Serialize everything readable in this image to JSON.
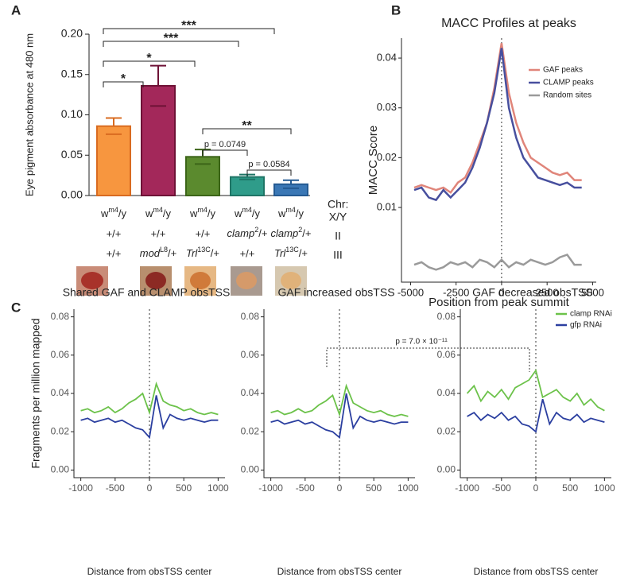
{
  "chart_data": [
    {
      "type": "bar",
      "panel": "A",
      "ylabel": "Eye pigment absorbance at 480 nm",
      "values": [
        0.086,
        0.136,
        0.048,
        0.023,
        0.014
      ],
      "errors": [
        0.01,
        0.025,
        0.009,
        0.003,
        0.005
      ],
      "colors": [
        "#f7963f",
        "#a3285a",
        "#5b8a2e",
        "#2f9c8a",
        "#3a77b5"
      ],
      "ylim": [
        0,
        0.2
      ],
      "yticks": [
        {
          "value": 0,
          "label": "0.00"
        },
        0.05,
        {
          "value": 0.1,
          "label": "0.10"
        },
        0.15,
        {
          "value": 0.2,
          "label": "0.20"
        }
      ],
      "chr_label": "Chr:",
      "chr_rows": [
        "X/Y",
        "II",
        "III"
      ],
      "genotypes": [
        [
          {
            "t": "w",
            "s": "m4",
            "a": "/y"
          },
          "+/+",
          "+/+"
        ],
        [
          {
            "t": "w",
            "s": "m4",
            "a": "/y"
          },
          "+/+",
          {
            "t": "mod",
            "s": "L8",
            "a": "/+"
          }
        ],
        [
          {
            "t": "w",
            "s": "m4",
            "a": "/y"
          },
          "+/+",
          {
            "t": "Trl",
            "s": "13C",
            "a": "/+"
          }
        ],
        [
          {
            "t": "w",
            "s": "m4",
            "a": "/y"
          },
          {
            "t": "clamp",
            "s": "2",
            "a": "/+"
          },
          "+/+"
        ],
        [
          {
            "t": "w",
            "s": "m4",
            "a": "/y"
          },
          {
            "t": "clamp",
            "s": "2",
            "a": "/+"
          },
          {
            "t": "Trl",
            "s": "13C",
            "a": "/+"
          }
        ]
      ],
      "annotations": [
        "***",
        "***",
        "*",
        "*",
        "**",
        "p = 0.0749",
        "p = 0.0584"
      ]
    },
    {
      "type": "line",
      "panel": "B",
      "title": "MACC Profiles at peaks",
      "xlabel": "Position from peak summit",
      "ylabel": "MACC Score",
      "x": [
        -4800,
        -4400,
        -4000,
        -3600,
        -3200,
        -2800,
        -2400,
        -2000,
        -1600,
        -1200,
        -800,
        -400,
        0,
        400,
        800,
        1200,
        1600,
        2000,
        2400,
        2800,
        3200,
        3600,
        4000,
        4400
      ],
      "series": [
        {
          "name": "GAF peaks",
          "color": "#e0857a",
          "values": [
            0.014,
            0.0145,
            0.014,
            0.0135,
            0.014,
            0.013,
            0.015,
            0.016,
            0.019,
            0.023,
            0.027,
            0.034,
            0.043,
            0.033,
            0.027,
            0.023,
            0.02,
            0.019,
            0.018,
            0.017,
            0.0165,
            0.017,
            0.0155,
            0.0155
          ]
        },
        {
          "name": "CLAMP peaks",
          "color": "#474f9e",
          "values": [
            0.0135,
            0.014,
            0.012,
            0.0115,
            0.0135,
            0.012,
            0.0135,
            0.015,
            0.018,
            0.022,
            0.027,
            0.033,
            0.042,
            0.03,
            0.024,
            0.02,
            0.018,
            0.016,
            0.0155,
            0.015,
            0.0145,
            0.015,
            0.014,
            0.014
          ]
        },
        {
          "name": "Random sites",
          "color": "#9a9a9a",
          "values": [
            -0.0015,
            -0.001,
            -0.002,
            -0.0025,
            -0.002,
            -0.001,
            -0.0015,
            -0.001,
            -0.002,
            -0.0005,
            -0.001,
            -0.002,
            -0.0005,
            -0.002,
            -0.001,
            -0.0015,
            -0.0005,
            -0.001,
            -0.0015,
            -0.001,
            0.0,
            0.0005,
            -0.0015,
            -0.0015
          ]
        }
      ],
      "xlim": [
        -5500,
        5200
      ],
      "xticks": [
        -5000,
        -2500,
        0,
        2500,
        5000
      ],
      "ylim": [
        -0.005,
        0.044
      ],
      "yticks": [
        0.01,
        0.02,
        0.03,
        0.04
      ],
      "legend": "upper right"
    },
    {
      "type": "line",
      "panel": "C",
      "title": "Shared GAF and CLAMP obsTSS",
      "xlabel": "Distance from obsTSS center",
      "ylabel": "Fragments per million mapped",
      "x": [
        -1000,
        -900,
        -800,
        -700,
        -600,
        -500,
        -400,
        -300,
        -200,
        -100,
        0,
        100,
        200,
        300,
        400,
        500,
        600,
        700,
        800,
        900,
        1000
      ],
      "series": [
        {
          "color": "#6cc24a",
          "values": [
            0.031,
            0.032,
            0.03,
            0.031,
            0.033,
            0.03,
            0.032,
            0.035,
            0.037,
            0.04,
            0.03,
            0.045,
            0.036,
            0.034,
            0.033,
            0.031,
            0.032,
            0.03,
            0.029,
            0.03,
            0.029
          ]
        },
        {
          "color": "#2b3fa0",
          "values": [
            0.026,
            0.027,
            0.025,
            0.026,
            0.027,
            0.025,
            0.026,
            0.024,
            0.022,
            0.021,
            0.017,
            0.039,
            0.022,
            0.029,
            0.027,
            0.026,
            0.027,
            0.026,
            0.025,
            0.026,
            0.026
          ]
        }
      ],
      "xlim": [
        -1100,
        1100
      ],
      "xticks": [
        -1000,
        -500,
        0,
        500,
        1000
      ],
      "ylim": [
        -0.004,
        0.084
      ],
      "yticks": [
        {
          "value": 0,
          "label": "0.00"
        },
        0.02,
        0.04,
        0.06,
        0.08
      ]
    },
    {
      "type": "line",
      "title": "GAF increased obsTSS",
      "xlabel": "Distance from obsTSS center",
      "x": [
        -1000,
        -900,
        -800,
        -700,
        -600,
        -500,
        -400,
        -300,
        -200,
        -100,
        0,
        100,
        200,
        300,
        400,
        500,
        600,
        700,
        800,
        900,
        1000
      ],
      "series": [
        {
          "color": "#6cc24a",
          "values": [
            0.03,
            0.031,
            0.029,
            0.03,
            0.032,
            0.03,
            0.031,
            0.034,
            0.036,
            0.039,
            0.029,
            0.044,
            0.035,
            0.033,
            0.031,
            0.03,
            0.031,
            0.029,
            0.028,
            0.029,
            0.028
          ]
        },
        {
          "color": "#2b3fa0",
          "values": [
            0.025,
            0.026,
            0.024,
            0.025,
            0.026,
            0.024,
            0.025,
            0.023,
            0.021,
            0.02,
            0.017,
            0.04,
            0.022,
            0.028,
            0.026,
            0.025,
            0.026,
            0.025,
            0.024,
            0.025,
            0.025
          ]
        }
      ],
      "xlim": [
        -1100,
        1100
      ],
      "xticks": [
        -1000,
        -500,
        0,
        500,
        1000
      ],
      "ylim": [
        -0.004,
        0.084
      ],
      "yticks": [
        {
          "value": 0,
          "label": "0.00"
        },
        0.02,
        0.04,
        0.06,
        0.08
      ]
    },
    {
      "type": "line",
      "title": "GAF decreased obsTSS",
      "xlabel": "Distance from obsTSS center",
      "x": [
        -1000,
        -900,
        -800,
        -700,
        -600,
        -500,
        -400,
        -300,
        -200,
        -100,
        0,
        100,
        200,
        300,
        400,
        500,
        600,
        700,
        800,
        900,
        1000
      ],
      "series": [
        {
          "name": "clamp RNAi",
          "color": "#6cc24a",
          "values": [
            0.04,
            0.044,
            0.036,
            0.041,
            0.038,
            0.042,
            0.037,
            0.043,
            0.045,
            0.047,
            0.052,
            0.038,
            0.04,
            0.042,
            0.038,
            0.036,
            0.04,
            0.034,
            0.037,
            0.033,
            0.031
          ]
        },
        {
          "name": "gfp RNAi",
          "color": "#2b3fa0",
          "values": [
            0.028,
            0.03,
            0.026,
            0.029,
            0.027,
            0.03,
            0.026,
            0.028,
            0.024,
            0.023,
            0.02,
            0.037,
            0.024,
            0.03,
            0.027,
            0.026,
            0.029,
            0.025,
            0.027,
            0.026,
            0.025
          ]
        }
      ],
      "xlim": [
        -1100,
        1100
      ],
      "xticks": [
        -1000,
        -500,
        0,
        500,
        1000
      ],
      "ylim": [
        -0.004,
        0.084
      ],
      "yticks": [
        {
          "value": 0,
          "label": "0.00"
        },
        0.02,
        0.04,
        0.06,
        0.08
      ],
      "legend": "upper right",
      "annotation": "p = 7.0 × 10⁻¹¹"
    }
  ]
}
